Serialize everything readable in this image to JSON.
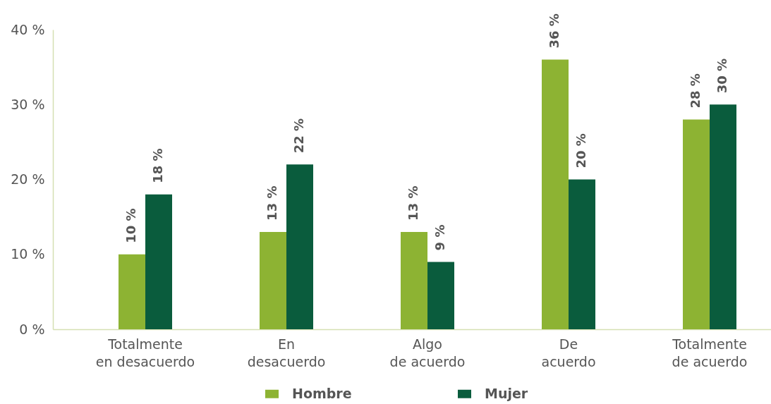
{
  "chart_data": {
    "type": "bar",
    "categories": [
      "Totalmente\nen desacuerdo",
      "En\ndesacuerdo",
      "Algo\nde acuerdo",
      "De\nacuerdo",
      "Totalmente\nde acuerdo"
    ],
    "series": [
      {
        "name": "Hombre",
        "color": "#8db333",
        "values": [
          10,
          13,
          13,
          36,
          28
        ],
        "value_labels": [
          "10 %",
          "13 %",
          "13 %",
          "36 %",
          "28 %"
        ]
      },
      {
        "name": "Mujer",
        "color": "#0a5c3d",
        "values": [
          18,
          22,
          9,
          20,
          30
        ],
        "value_labels": [
          "18 %",
          "22 %",
          "9 %",
          "20 %",
          "30 %"
        ]
      }
    ],
    "ylim": [
      0,
      40
    ],
    "yticks": [
      {
        "value": 0,
        "label": "0 %"
      },
      {
        "value": 10,
        "label": "10 %"
      },
      {
        "value": 20,
        "label": "20 %"
      },
      {
        "value": 30,
        "label": "30 %"
      },
      {
        "value": 40,
        "label": "40 %"
      }
    ],
    "grid": false,
    "legend": "bottom"
  }
}
